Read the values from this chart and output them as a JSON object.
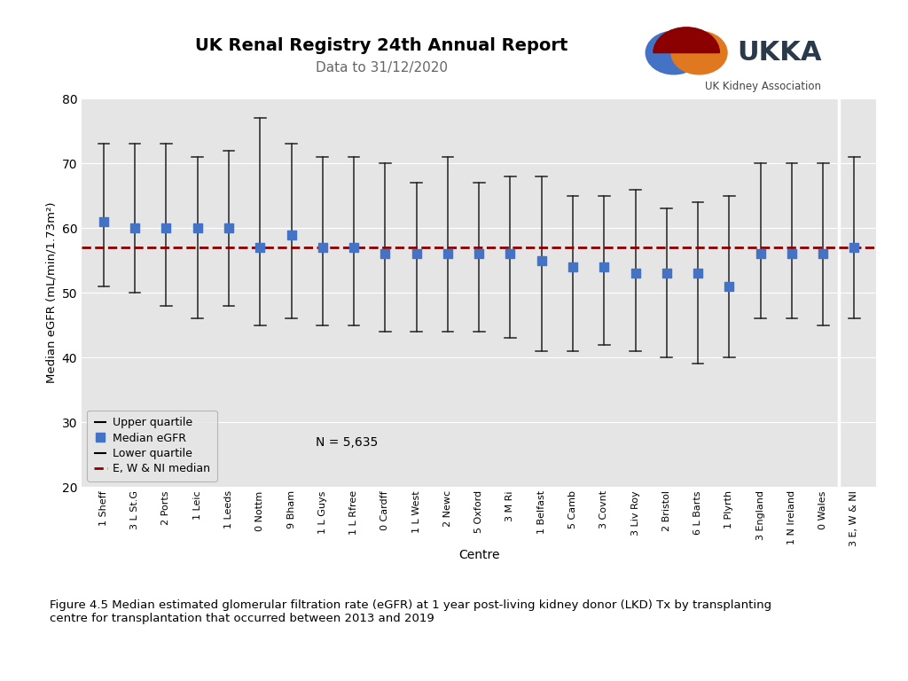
{
  "centres": [
    "1 Sheff",
    "3 L St.G",
    "2 Ports",
    "1 Leic",
    "1 Leeds",
    "0 Nottm",
    "9 Bham",
    "1 L Guys",
    "1 L Rfree",
    "0 Cardff",
    "1 L West",
    "2 Newc",
    "5 Oxford",
    "3 M Ri",
    "1 Belfast",
    "5 Camb",
    "3 Covnt",
    "3 Liv Roy",
    "2 Bristol",
    "6 L Barts",
    "1 Plyrth",
    "3 England",
    "1 N Ireland",
    "0 Wales",
    "3 E, W & NI"
  ],
  "medians": [
    61,
    60,
    60,
    60,
    60,
    57,
    59,
    57,
    57,
    56,
    56,
    56,
    56,
    56,
    55,
    54,
    54,
    53,
    53,
    53,
    51,
    56,
    56,
    56,
    57
  ],
  "upper_quartiles": [
    73,
    73,
    73,
    71,
    72,
    77,
    73,
    71,
    71,
    70,
    67,
    71,
    67,
    68,
    68,
    65,
    65,
    66,
    63,
    64,
    65,
    70,
    70,
    70,
    71
  ],
  "lower_quartiles": [
    51,
    50,
    48,
    46,
    48,
    45,
    46,
    45,
    45,
    44,
    44,
    44,
    44,
    43,
    41,
    41,
    42,
    41,
    40,
    39,
    40,
    46,
    46,
    45,
    46
  ],
  "overall_median": 57,
  "n_label": "N = 5,635",
  "ylabel": "Median eGFR (mL/min/1.73m²)",
  "xlabel": "Centre",
  "ylim": [
    20,
    80
  ],
  "yticks": [
    20,
    30,
    40,
    50,
    60,
    70,
    80
  ],
  "bg_color": "#e5e5e5",
  "median_color": "#4472c4",
  "overall_median_color": "#8b0000",
  "error_color": "#222222",
  "title": "UK Renal Registry 24th Annual Report",
  "subtitle": "Data to 31/12/2020",
  "figure_caption": "Figure 4.5 Median estimated glomerular filtration rate (eGFR) at 1 year post-living kidney donor (LKD) Tx by transplanting\ncentre for transplantation that occurred between 2013 and 2019",
  "legend_labels": [
    "Upper quartile",
    "Median eGFR",
    "Lower quartile",
    "E, W & NI median"
  ]
}
